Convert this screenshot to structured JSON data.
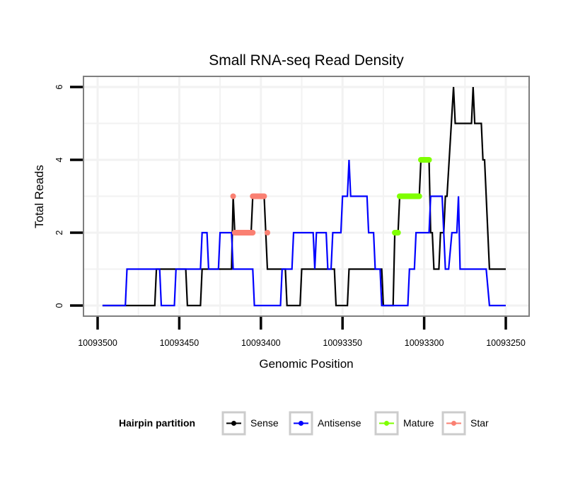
{
  "chart_data": {
    "type": "line",
    "title": "Small RNA-seq Read Density",
    "xlabel": "Genomic Position",
    "ylabel": "Total Reads",
    "xlim": [
      10093515,
      10093240
    ],
    "x_reversed": true,
    "ylim": [
      -0.3,
      6.3
    ],
    "xticks": [
      10093500,
      10093450,
      10093400,
      10093350,
      10093300,
      10093250
    ],
    "xtick_labels": [
      "10093500",
      "10093450",
      "10093400",
      "10093350",
      "10093300",
      "10093250"
    ],
    "yticks": [
      0,
      2,
      4,
      6
    ],
    "ytick_labels": [
      "0",
      "2",
      "4",
      "6"
    ],
    "grid": true,
    "legend": {
      "title": "Hairpin partition",
      "placement": "bottom",
      "entries": [
        {
          "label": "Sense",
          "color": "#000000"
        },
        {
          "label": "Antisense",
          "color": "#0000ff"
        },
        {
          "label": "Mature",
          "color": "#7fff00"
        },
        {
          "label": "Star",
          "color": "#fa8072"
        }
      ]
    },
    "series": [
      {
        "name": "Sense",
        "color": "#000000",
        "points": [
          [
            10093497,
            0
          ],
          [
            10093465,
            0
          ],
          [
            10093464,
            1
          ],
          [
            10093446,
            1
          ],
          [
            10093445,
            0
          ],
          [
            10093437,
            0
          ],
          [
            10093436,
            1
          ],
          [
            10093418,
            1
          ],
          [
            10093417,
            3
          ],
          [
            10093416,
            2
          ],
          [
            10093406,
            2
          ],
          [
            10093405,
            3
          ],
          [
            10093398,
            3
          ],
          [
            10093397,
            2
          ],
          [
            10093396,
            1
          ],
          [
            10093385,
            1
          ],
          [
            10093384,
            0
          ],
          [
            10093376,
            0
          ],
          [
            10093375,
            1
          ],
          [
            10093355,
            1
          ],
          [
            10093354,
            0
          ],
          [
            10093347,
            0
          ],
          [
            10093346,
            1
          ],
          [
            10093326,
            1
          ],
          [
            10093325,
            0
          ],
          [
            10093319,
            0
          ],
          [
            10093318,
            2
          ],
          [
            10093316,
            2
          ],
          [
            10093315,
            3
          ],
          [
            10093303,
            3
          ],
          [
            10093302,
            4
          ],
          [
            10093297,
            4
          ],
          [
            10093296,
            2
          ],
          [
            10093295,
            2
          ],
          [
            10093294,
            1
          ],
          [
            10093291,
            1
          ],
          [
            10093290,
            2
          ],
          [
            10093288,
            2
          ],
          [
            10093287,
            3
          ],
          [
            10093286,
            3
          ],
          [
            10093282,
            6
          ],
          [
            10093281,
            5
          ],
          [
            10093271,
            5
          ],
          [
            10093270,
            6
          ],
          [
            10093269,
            5
          ],
          [
            10093265,
            5
          ],
          [
            10093264,
            4
          ],
          [
            10093263,
            4
          ],
          [
            10093260,
            1
          ],
          [
            10093250,
            1
          ]
        ]
      },
      {
        "name": "Antisense",
        "color": "#0000ff",
        "points": [
          [
            10093497,
            0
          ],
          [
            10093483,
            0
          ],
          [
            10093482,
            1
          ],
          [
            10093462,
            1
          ],
          [
            10093461,
            0
          ],
          [
            10093453,
            0
          ],
          [
            10093452,
            1
          ],
          [
            10093437,
            1
          ],
          [
            10093436,
            2
          ],
          [
            10093433,
            2
          ],
          [
            10093432,
            1
          ],
          [
            10093426,
            1
          ],
          [
            10093425,
            2
          ],
          [
            10093418,
            2
          ],
          [
            10093417,
            1
          ],
          [
            10093405,
            1
          ],
          [
            10093404,
            0
          ],
          [
            10093388,
            0
          ],
          [
            10093387,
            1
          ],
          [
            10093381,
            1
          ],
          [
            10093380,
            2
          ],
          [
            10093368,
            2
          ],
          [
            10093367,
            1
          ],
          [
            10093366,
            2
          ],
          [
            10093360,
            2
          ],
          [
            10093359,
            1
          ],
          [
            10093357,
            1
          ],
          [
            10093356,
            2
          ],
          [
            10093351,
            2
          ],
          [
            10093350,
            3
          ],
          [
            10093347,
            3
          ],
          [
            10093346,
            4
          ],
          [
            10093345,
            3
          ],
          [
            10093335,
            3
          ],
          [
            10093334,
            2
          ],
          [
            10093331,
            2
          ],
          [
            10093330,
            1
          ],
          [
            10093327,
            1
          ],
          [
            10093326,
            0
          ],
          [
            10093310,
            0
          ],
          [
            10093309,
            1
          ],
          [
            10093306,
            1
          ],
          [
            10093305,
            2
          ],
          [
            10093297,
            2
          ],
          [
            10093296,
            3
          ],
          [
            10093289,
            3
          ],
          [
            10093288,
            2
          ],
          [
            10093287,
            1
          ],
          [
            10093285,
            1
          ],
          [
            10093283,
            2
          ],
          [
            10093280,
            2
          ],
          [
            10093279,
            3
          ],
          [
            10093278,
            1
          ],
          [
            10093262,
            1
          ],
          [
            10093260,
            0
          ],
          [
            10093250,
            0
          ]
        ]
      }
    ],
    "markers": [
      {
        "series": "Star",
        "color": "#fa8072",
        "segments": [
          [
            10093417,
            10093417,
            3
          ],
          [
            10093416,
            10093405,
            2
          ],
          [
            10093405,
            10093398,
            3
          ],
          [
            10093396,
            10093396,
            2
          ]
        ]
      },
      {
        "series": "Mature",
        "color": "#7fff00",
        "segments": [
          [
            10093318,
            10093316,
            2
          ],
          [
            10093315,
            10093303,
            3
          ],
          [
            10093302,
            10093297,
            4
          ]
        ]
      }
    ]
  }
}
